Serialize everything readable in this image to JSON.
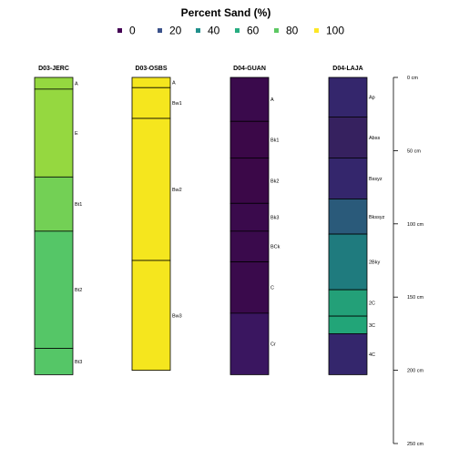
{
  "chart_data": {
    "type": "bar",
    "title": "Percent Sand (%)",
    "legend": {
      "position": "top",
      "entries": [
        {
          "label": "0",
          "color": "#440154"
        },
        {
          "label": "20",
          "color": "#3B528B"
        },
        {
          "label": "40",
          "color": "#21908C"
        },
        {
          "label": "60",
          "color": "#27AD81"
        },
        {
          "label": "80",
          "color": "#5DC863"
        },
        {
          "label": "100",
          "color": "#FDE725"
        }
      ]
    },
    "depth_axis": {
      "unit": "cm",
      "range": [
        0,
        250
      ],
      "ticks": [
        0,
        50,
        100,
        150,
        200,
        250
      ],
      "tick_labels": [
        "0 cm",
        "50 cm",
        "100 cm",
        "150 cm",
        "200 cm",
        "250 cm"
      ]
    },
    "profiles": [
      {
        "name": "D03-JERC",
        "horizons": [
          {
            "name": "A",
            "top": 0,
            "bottom": 8,
            "sand": 85,
            "color": "#95D840"
          },
          {
            "name": "E",
            "top": 8,
            "bottom": 68,
            "sand": 85,
            "color": "#95D840"
          },
          {
            "name": "Bt1",
            "top": 68,
            "bottom": 105,
            "sand": 80,
            "color": "#73D055"
          },
          {
            "name": "Bt2",
            "top": 105,
            "bottom": 185,
            "sand": 75,
            "color": "#55C667"
          },
          {
            "name": "Bt3",
            "top": 185,
            "bottom": 203,
            "sand": 75,
            "color": "#55C667"
          }
        ]
      },
      {
        "name": "D03-OSBS",
        "horizons": [
          {
            "name": "A",
            "top": 0,
            "bottom": 7,
            "sand": 98,
            "color": "#F5E61E"
          },
          {
            "name": "Bw1",
            "top": 7,
            "bottom": 28,
            "sand": 98,
            "color": "#F5E61E"
          },
          {
            "name": "Bw2",
            "top": 28,
            "bottom": 125,
            "sand": 98,
            "color": "#F5E61E"
          },
          {
            "name": "Bw3",
            "top": 125,
            "bottom": 200,
            "sand": 98,
            "color": "#F5E61E"
          }
        ]
      },
      {
        "name": "D04-GUAN",
        "horizons": [
          {
            "name": "A",
            "top": 0,
            "bottom": 30,
            "sand": 3,
            "color": "#3A0A4C"
          },
          {
            "name": "Bk1",
            "top": 30,
            "bottom": 55,
            "sand": 2,
            "color": "#3B0848"
          },
          {
            "name": "Bk2",
            "top": 55,
            "bottom": 86,
            "sand": 2,
            "color": "#3B0848"
          },
          {
            "name": "Bk3",
            "top": 86,
            "bottom": 105,
            "sand": 3,
            "color": "#3A0A4C"
          },
          {
            "name": "BCk",
            "top": 105,
            "bottom": 126,
            "sand": 3,
            "color": "#3A0A4C"
          },
          {
            "name": "C",
            "top": 126,
            "bottom": 161,
            "sand": 3,
            "color": "#3A0A4C"
          },
          {
            "name": "Cr",
            "top": 161,
            "bottom": 203,
            "sand": 15,
            "color": "#3A1660"
          }
        ]
      },
      {
        "name": "D04-LAJA",
        "horizons": [
          {
            "name": "Ap",
            "top": 0,
            "bottom": 27,
            "sand": 20,
            "color": "#34266C"
          },
          {
            "name": "Abss",
            "top": 27,
            "bottom": 55,
            "sand": 18,
            "color": "#36215F"
          },
          {
            "name": "Bssyz",
            "top": 55,
            "bottom": 83,
            "sand": 20,
            "color": "#34266C"
          },
          {
            "name": "Bkssyz",
            "top": 83,
            "bottom": 107,
            "sand": 42,
            "color": "#2A5A7A"
          },
          {
            "name": "2Bky",
            "top": 107,
            "bottom": 145,
            "sand": 48,
            "color": "#1F7B7E"
          },
          {
            "name": "2C",
            "top": 145,
            "bottom": 163,
            "sand": 60,
            "color": "#23A078"
          },
          {
            "name": "3C",
            "top": 163,
            "bottom": 175,
            "sand": 62,
            "color": "#22A578"
          },
          {
            "name": "4C",
            "top": 175,
            "bottom": 203,
            "sand": 20,
            "color": "#34266C"
          }
        ]
      }
    ]
  }
}
